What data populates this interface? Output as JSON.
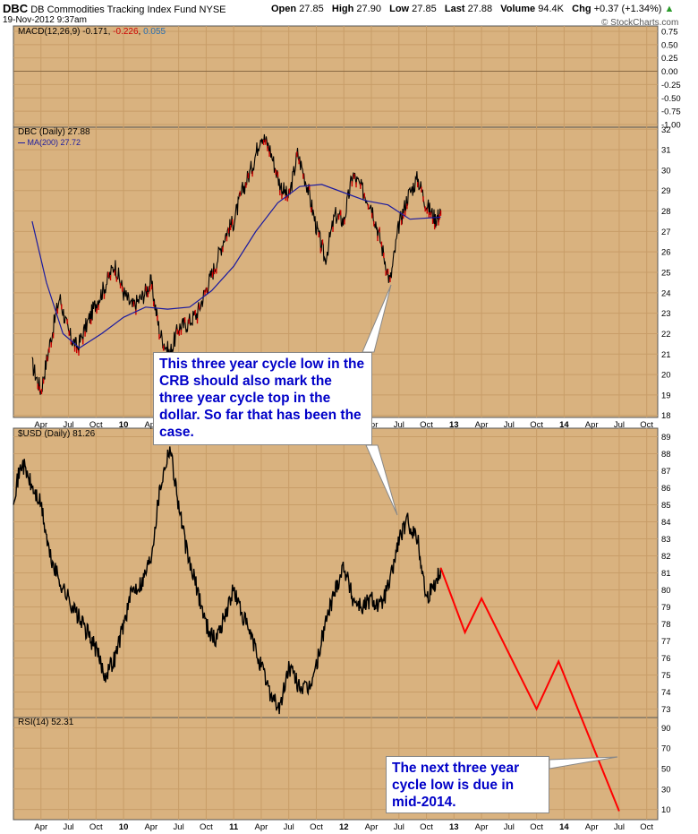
{
  "header": {
    "symbol": "DBC",
    "name": "DB Commodities Tracking Index Fund",
    "exchange": "NYSE",
    "date": "19-Nov-2012 9:37am",
    "open_label": "Open",
    "open": "27.85",
    "high_label": "High",
    "high": "27.90",
    "low_label": "Low",
    "low": "27.85",
    "last_label": "Last",
    "last": "27.88",
    "volume_label": "Volume",
    "volume": "94.4K",
    "chg_label": "Chg",
    "chg": "+0.37 (+1.34%)",
    "watermark": "© StockCharts.com"
  },
  "colors": {
    "panel_bg": "#d9b27f",
    "grid": "#c89d68",
    "price": "#000000",
    "down": "#cc0000",
    "ma": "#1a1aa0",
    "macd_line": "#000000",
    "macd_signal": "#cc0000",
    "macd_hist": "#2a6fb0",
    "projection": "#ff0000",
    "callout_text": "#0000c8"
  },
  "chart_data": [
    {
      "type": "line",
      "panel": "macd",
      "title": "MACD(12,26,9)",
      "legend": [
        "-0.171",
        "-0.226",
        "0.055"
      ],
      "yticks": [
        "0.75",
        "0.50",
        "0.25",
        "0.00",
        "-0.25",
        "-0.50",
        "-0.75",
        "-1.00"
      ],
      "ylim": [
        -1.05,
        0.85
      ]
    },
    {
      "type": "line",
      "panel": "dbc",
      "title": "DBC (Daily) 27.88",
      "ma_label": "MA(200) 27.72",
      "yticks": [
        "32",
        "31",
        "30",
        "29",
        "28",
        "27",
        "26",
        "25",
        "24",
        "23",
        "22",
        "21",
        "20",
        "19",
        "18"
      ],
      "ylim": [
        17.9,
        32.1
      ],
      "price_x": [
        2009.17,
        2009.25,
        2009.33,
        2009.42,
        2009.5,
        2009.58,
        2009.67,
        2009.75,
        2009.83,
        2009.92,
        2010.0,
        2010.08,
        2010.17,
        2010.25,
        2010.33,
        2010.42,
        2010.5,
        2010.58,
        2010.67,
        2010.75,
        2010.83,
        2010.92,
        2011.0,
        2011.08,
        2011.17,
        2011.25,
        2011.33,
        2011.42,
        2011.5,
        2011.58,
        2011.67,
        2011.75,
        2011.83,
        2011.92,
        2012.0,
        2012.08,
        2012.17,
        2012.25,
        2012.33,
        2012.42,
        2012.5,
        2012.58,
        2012.67,
        2012.75,
        2012.83,
        2012.88
      ],
      "price_y": [
        20.5,
        19.2,
        21.5,
        23.8,
        22.0,
        21.3,
        22.5,
        23.5,
        24.3,
        25.4,
        24.0,
        23.3,
        23.8,
        24.5,
        22.0,
        21.0,
        22.3,
        22.5,
        23.0,
        24.2,
        25.3,
        26.8,
        27.5,
        29.0,
        30.2,
        31.8,
        31.0,
        29.3,
        28.6,
        30.8,
        29.2,
        27.2,
        25.6,
        27.8,
        27.5,
        29.8,
        29.0,
        28.3,
        26.6,
        24.5,
        27.3,
        28.7,
        29.6,
        28.3,
        27.6,
        27.9
      ],
      "ma_x": [
        2009.17,
        2009.3,
        2009.45,
        2009.6,
        2009.8,
        2010.0,
        2010.2,
        2010.4,
        2010.6,
        2010.8,
        2011.0,
        2011.2,
        2011.4,
        2011.6,
        2011.8,
        2012.0,
        2012.2,
        2012.4,
        2012.6,
        2012.88
      ],
      "ma_y": [
        27.5,
        24.5,
        22.0,
        21.3,
        22.0,
        22.8,
        23.3,
        23.2,
        23.3,
        24.1,
        25.3,
        27.0,
        28.4,
        29.2,
        29.3,
        28.9,
        28.5,
        28.3,
        27.6,
        27.7
      ]
    },
    {
      "type": "line",
      "panel": "usd",
      "title": "$USD (Daily) 81.26",
      "yticks": [
        "89",
        "88",
        "87",
        "86",
        "85",
        "84",
        "83",
        "82",
        "81",
        "80",
        "79",
        "78",
        "77",
        "76",
        "75",
        "74",
        "73"
      ],
      "ylim": [
        72.5,
        89.5
      ],
      "price_x": [
        2009.0,
        2009.08,
        2009.17,
        2009.25,
        2009.33,
        2009.42,
        2009.5,
        2009.58,
        2009.67,
        2009.75,
        2009.83,
        2009.92,
        2010.0,
        2010.08,
        2010.17,
        2010.25,
        2010.33,
        2010.42,
        2010.5,
        2010.58,
        2010.67,
        2010.75,
        2010.83,
        2010.92,
        2011.0,
        2011.08,
        2011.17,
        2011.25,
        2011.33,
        2011.42,
        2011.5,
        2011.58,
        2011.67,
        2011.75,
        2011.83,
        2011.92,
        2012.0,
        2012.08,
        2012.17,
        2012.25,
        2012.33,
        2012.42,
        2012.5,
        2012.58,
        2012.67,
        2012.75,
        2012.83,
        2012.88
      ],
      "price_y": [
        85.5,
        87.5,
        86.0,
        85.0,
        82.0,
        80.5,
        79.5,
        78.5,
        77.5,
        76.5,
        75.0,
        76.0,
        78.0,
        80.0,
        80.5,
        82.0,
        86.0,
        88.5,
        85.0,
        82.0,
        80.0,
        78.0,
        77.0,
        78.5,
        80.0,
        78.5,
        77.0,
        75.5,
        74.0,
        73.0,
        75.5,
        74.5,
        74.0,
        75.5,
        78.0,
        80.0,
        81.5,
        79.5,
        79.0,
        79.5,
        79.0,
        80.5,
        83.0,
        84.0,
        83.0,
        79.5,
        80.5,
        81.3
      ],
      "projection_x": [
        2012.88,
        2013.1,
        2013.25,
        2013.75,
        2013.95,
        2014.5
      ],
      "projection_y": [
        81.3,
        77.5,
        79.5,
        73.0,
        75.8,
        67.0
      ]
    },
    {
      "type": "line",
      "panel": "rsi",
      "title": "RSI(14) 52.31",
      "yticks": [
        "90",
        "70",
        "50",
        "30",
        "10"
      ],
      "ylim": [
        0,
        100
      ],
      "projection_x": [
        2014.0,
        2014.45
      ],
      "projection_y": [
        55,
        66
      ]
    }
  ],
  "x_axis": {
    "labels": [
      "Apr",
      "Jul",
      "Oct",
      "10",
      "Apr",
      "Jul",
      "Oct",
      "11",
      "Apr",
      "Jul",
      "Oct",
      "12",
      "Apr",
      "Jul",
      "Oct",
      "13",
      "Apr",
      "Jul",
      "Oct",
      "14",
      "Apr",
      "Jul",
      "Oct"
    ],
    "values": [
      2009.25,
      2009.5,
      2009.75,
      2010.0,
      2010.25,
      2010.5,
      2010.75,
      2011.0,
      2011.25,
      2011.5,
      2011.75,
      2012.0,
      2012.25,
      2012.5,
      2012.75,
      2013.0,
      2013.25,
      2013.5,
      2013.75,
      2014.0,
      2014.25,
      2014.5,
      2014.75
    ],
    "bold": [
      "10",
      "11",
      "12",
      "13",
      "14"
    ],
    "xlim": [
      2009.0,
      2014.85
    ]
  },
  "annotations": {
    "callout1": "This three year cycle low in the CRB should also mark the three year cycle top in the dollar. So far that has been the case.",
    "callout2": "The next three year cycle low is due in mid-2014."
  }
}
